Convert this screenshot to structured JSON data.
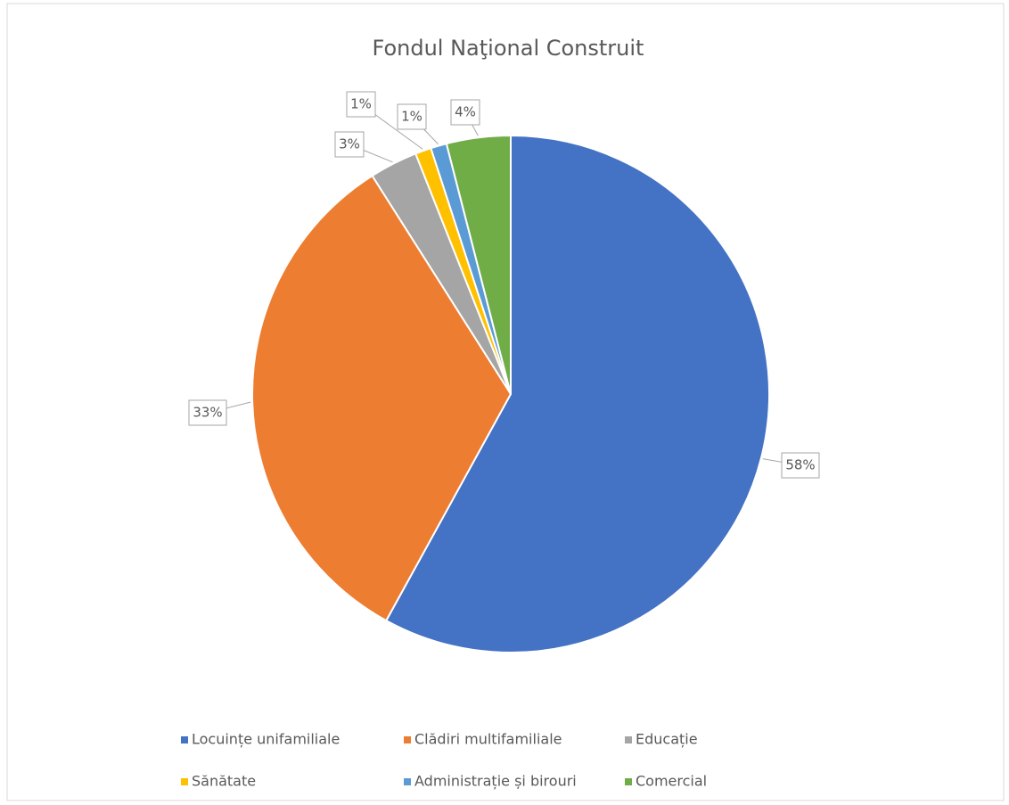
{
  "chart_data": {
    "type": "pie",
    "title": "Fondul Naţional Construit",
    "categories": [
      "Locuințe unifamiliale",
      "Clădiri multifamiliale",
      "Educație",
      "Sănătate",
      "Administrație și birouri",
      "Comercial"
    ],
    "values": [
      58,
      33,
      3,
      1,
      1,
      4
    ],
    "value_labels": [
      "58%",
      "33%",
      "3%",
      "1%",
      "1%",
      "4%"
    ],
    "colors": [
      "#4472c4",
      "#ed7d31",
      "#a5a5a5",
      "#ffc000",
      "#5b9bd5",
      "#70ad47"
    ],
    "legend": "bottom"
  }
}
